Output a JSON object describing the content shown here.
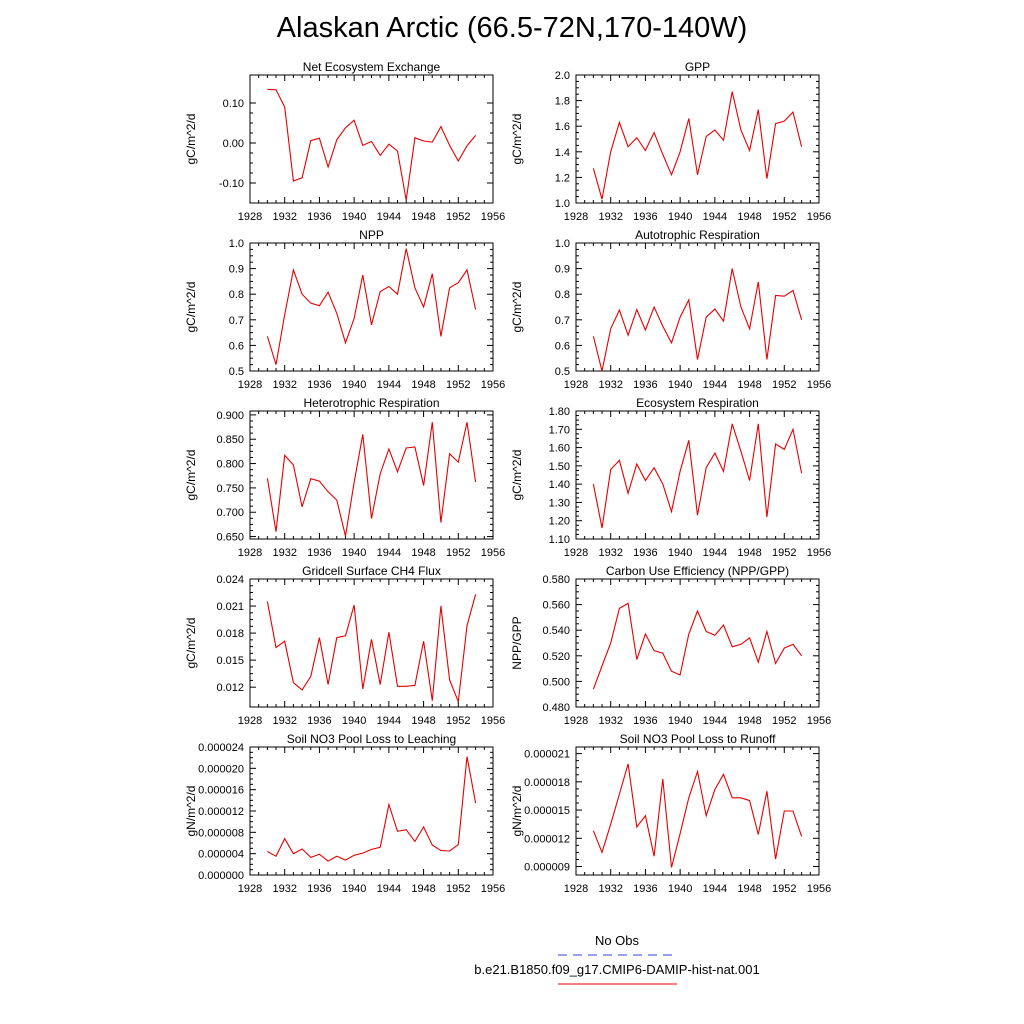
{
  "figure": {
    "title": "Alaskan Arctic (66.5-72N,170-140W)"
  },
  "legend": {
    "obs_label": "No Obs",
    "model_label": "b.e21.B1850.f09_g17.CMIP6-DAMIP-hist-nat.001",
    "obs_color": "#3c3cdc",
    "model_color": "#e60000"
  },
  "chart_data": [
    {
      "type": "line",
      "title": "Net Ecosystem Exchange",
      "ylabel": "gC/m^2/d",
      "xlim": [
        1928,
        1956
      ],
      "ylim": [
        -0.15,
        0.17
      ],
      "yticks": [
        0.1,
        0.0,
        -0.1
      ],
      "ytick_labels": [
        "0.10",
        "0.00",
        "-0.10"
      ],
      "x": [
        1930,
        1931,
        1932,
        1933,
        1934,
        1935,
        1936,
        1937,
        1938,
        1939,
        1940,
        1941,
        1942,
        1943,
        1944,
        1945,
        1946,
        1947,
        1948,
        1949,
        1950,
        1951,
        1952,
        1953,
        1954
      ],
      "series": [
        {
          "values": [
            0.134,
            0.133,
            0.09,
            -0.095,
            -0.087,
            0.006,
            0.012,
            -0.06,
            0.008,
            0.038,
            0.057,
            -0.006,
            0.004,
            -0.031,
            -0.003,
            -0.02,
            -0.143,
            0.013,
            0.005,
            0.002,
            0.041,
            -0.006,
            -0.045,
            -0.007,
            0.019
          ]
        }
      ]
    },
    {
      "type": "line",
      "title": "GPP",
      "ylabel": "gC/m^2/d",
      "xlim": [
        1928,
        1956
      ],
      "ylim": [
        1.0,
        2.0
      ],
      "yticks": [
        1.0,
        1.2,
        1.4,
        1.6,
        1.8,
        2.0
      ],
      "ytick_labels": [
        "1.0",
        "1.2",
        "1.4",
        "1.6",
        "1.8",
        "2.0"
      ],
      "x": [
        1930,
        1931,
        1932,
        1933,
        1934,
        1935,
        1936,
        1937,
        1938,
        1939,
        1940,
        1941,
        1942,
        1943,
        1944,
        1945,
        1946,
        1947,
        1948,
        1949,
        1950,
        1951,
        1952,
        1953,
        1954
      ],
      "series": [
        {
          "values": [
            1.27,
            1.03,
            1.4,
            1.63,
            1.44,
            1.51,
            1.41,
            1.55,
            1.38,
            1.22,
            1.4,
            1.66,
            1.22,
            1.52,
            1.57,
            1.49,
            1.87,
            1.57,
            1.41,
            1.73,
            1.19,
            1.62,
            1.64,
            1.71,
            1.44
          ]
        }
      ]
    },
    {
      "type": "line",
      "title": "NPP",
      "ylabel": "gC/m^2/d",
      "xlim": [
        1928,
        1956
      ],
      "ylim": [
        0.5,
        1.0
      ],
      "yticks": [
        0.5,
        0.6,
        0.7,
        0.8,
        0.9,
        1.0
      ],
      "ytick_labels": [
        "0.5",
        "0.6",
        "0.7",
        "0.8",
        "0.9",
        "1.0"
      ],
      "x": [
        1930,
        1931,
        1932,
        1933,
        1934,
        1935,
        1936,
        1937,
        1938,
        1939,
        1940,
        1941,
        1942,
        1943,
        1944,
        1945,
        1946,
        1947,
        1948,
        1949,
        1950,
        1951,
        1952,
        1953,
        1954
      ],
      "series": [
        {
          "values": [
            0.635,
            0.525,
            0.72,
            0.895,
            0.8,
            0.765,
            0.755,
            0.808,
            0.725,
            0.61,
            0.705,
            0.875,
            0.68,
            0.81,
            0.83,
            0.8,
            0.978,
            0.825,
            0.75,
            0.88,
            0.635,
            0.825,
            0.845,
            0.895,
            0.74
          ]
        }
      ]
    },
    {
      "type": "line",
      "title": "Autotrophic Respiration",
      "ylabel": "gC/m^2/d",
      "xlim": [
        1928,
        1956
      ],
      "ylim": [
        0.5,
        1.0
      ],
      "yticks": [
        0.5,
        0.6,
        0.7,
        0.8,
        0.9,
        1.0
      ],
      "ytick_labels": [
        "0.5",
        "0.6",
        "0.7",
        "0.8",
        "0.9",
        "1.0"
      ],
      "x": [
        1930,
        1931,
        1932,
        1933,
        1934,
        1935,
        1936,
        1937,
        1938,
        1939,
        1940,
        1941,
        1942,
        1943,
        1944,
        1945,
        1946,
        1947,
        1948,
        1949,
        1950,
        1951,
        1952,
        1953,
        1954
      ],
      "series": [
        {
          "values": [
            0.635,
            0.5,
            0.665,
            0.738,
            0.64,
            0.74,
            0.66,
            0.75,
            0.675,
            0.61,
            0.71,
            0.778,
            0.545,
            0.71,
            0.742,
            0.695,
            0.9,
            0.75,
            0.665,
            0.848,
            0.545,
            0.795,
            0.792,
            0.815,
            0.7
          ]
        }
      ]
    },
    {
      "type": "line",
      "title": "Heterotrophic Respiration",
      "ylabel": "gC/m^2/d",
      "xlim": [
        1928,
        1956
      ],
      "ylim": [
        0.645,
        0.908
      ],
      "yticks": [
        0.65,
        0.7,
        0.75,
        0.8,
        0.85,
        0.9
      ],
      "ytick_labels": [
        "0.650",
        "0.700",
        "0.750",
        "0.800",
        "0.850",
        "0.900"
      ],
      "x": [
        1930,
        1931,
        1932,
        1933,
        1934,
        1935,
        1936,
        1937,
        1938,
        1939,
        1940,
        1941,
        1942,
        1943,
        1944,
        1945,
        1946,
        1947,
        1948,
        1949,
        1950,
        1951,
        1952,
        1953,
        1954
      ],
      "series": [
        {
          "values": [
            0.77,
            0.66,
            0.817,
            0.797,
            0.711,
            0.769,
            0.764,
            0.742,
            0.725,
            0.651,
            0.761,
            0.86,
            0.687,
            0.779,
            0.83,
            0.783,
            0.832,
            0.834,
            0.755,
            0.885,
            0.679,
            0.82,
            0.803,
            0.885,
            0.762
          ]
        }
      ]
    },
    {
      "type": "line",
      "title": "Ecosystem Respiration",
      "ylabel": "gC/m^2/d",
      "xlim": [
        1928,
        1956
      ],
      "ylim": [
        1.1,
        1.8
      ],
      "yticks": [
        1.1,
        1.2,
        1.3,
        1.4,
        1.5,
        1.6,
        1.7,
        1.8
      ],
      "ytick_labels": [
        "1.10",
        "1.20",
        "1.30",
        "1.40",
        "1.50",
        "1.60",
        "1.70",
        "1.80"
      ],
      "x": [
        1930,
        1931,
        1932,
        1933,
        1934,
        1935,
        1936,
        1937,
        1938,
        1939,
        1940,
        1941,
        1942,
        1943,
        1944,
        1945,
        1946,
        1947,
        1948,
        1949,
        1950,
        1951,
        1952,
        1953,
        1954
      ],
      "series": [
        {
          "values": [
            1.4,
            1.16,
            1.48,
            1.53,
            1.35,
            1.51,
            1.42,
            1.49,
            1.4,
            1.25,
            1.47,
            1.64,
            1.23,
            1.49,
            1.57,
            1.47,
            1.73,
            1.58,
            1.42,
            1.73,
            1.22,
            1.62,
            1.59,
            1.7,
            1.46
          ]
        }
      ]
    },
    {
      "type": "line",
      "title": "Gridcell Surface CH4 Flux",
      "ylabel": "gC/m^2/d",
      "xlim": [
        1928,
        1956
      ],
      "ylim": [
        0.0098,
        0.024
      ],
      "yticks": [
        0.012,
        0.015,
        0.018,
        0.021,
        0.024
      ],
      "ytick_labels": [
        "0.012",
        "0.015",
        "0.018",
        "0.021",
        "0.024"
      ],
      "x": [
        1930,
        1931,
        1932,
        1933,
        1934,
        1935,
        1936,
        1937,
        1938,
        1939,
        1940,
        1941,
        1942,
        1943,
        1944,
        1945,
        1946,
        1947,
        1948,
        1949,
        1950,
        1951,
        1952,
        1953,
        1954
      ],
      "series": [
        {
          "values": [
            0.0215,
            0.0164,
            0.0171,
            0.0125,
            0.0117,
            0.0132,
            0.0175,
            0.0123,
            0.0175,
            0.0177,
            0.0211,
            0.0118,
            0.0173,
            0.0123,
            0.0181,
            0.0121,
            0.0121,
            0.0122,
            0.0171,
            0.0105,
            0.021,
            0.0128,
            0.0104,
            0.0188,
            0.0223
          ]
        }
      ]
    },
    {
      "type": "line",
      "title": "Carbon Use Efficiency (NPP/GPP)",
      "ylabel": "NPP/GPP",
      "xlim": [
        1928,
        1956
      ],
      "ylim": [
        0.48,
        0.58
      ],
      "yticks": [
        0.48,
        0.5,
        0.52,
        0.54,
        0.56,
        0.58
      ],
      "ytick_labels": [
        "0.480",
        "0.500",
        "0.520",
        "0.540",
        "0.560",
        "0.580"
      ],
      "x": [
        1930,
        1931,
        1932,
        1933,
        1934,
        1935,
        1936,
        1937,
        1938,
        1939,
        1940,
        1941,
        1942,
        1943,
        1944,
        1945,
        1946,
        1947,
        1948,
        1949,
        1950,
        1951,
        1952,
        1953,
        1954
      ],
      "series": [
        {
          "values": [
            0.494,
            0.512,
            0.53,
            0.557,
            0.561,
            0.517,
            0.537,
            0.524,
            0.522,
            0.508,
            0.505,
            0.537,
            0.555,
            0.539,
            0.536,
            0.544,
            0.527,
            0.529,
            0.534,
            0.515,
            0.539,
            0.514,
            0.526,
            0.529,
            0.52
          ]
        }
      ]
    },
    {
      "type": "line",
      "title": "Soil NO3 Pool Loss to Leaching",
      "ylabel": "gN/m^2/d",
      "xlim": [
        1928,
        1956
      ],
      "ylim": [
        0.0,
        2.4e-05
      ],
      "yticks": [
        0.0,
        4e-06,
        8e-06,
        1.2e-05,
        1.6e-05,
        2e-05,
        2.4e-05
      ],
      "ytick_labels": [
        "0.000000",
        "0.000004",
        "0.000008",
        "0.000012",
        "0.000016",
        "0.000020",
        "0.000024"
      ],
      "x": [
        1930,
        1931,
        1932,
        1933,
        1934,
        1935,
        1936,
        1937,
        1938,
        1939,
        1940,
        1941,
        1942,
        1943,
        1944,
        1945,
        1946,
        1947,
        1948,
        1949,
        1950,
        1951,
        1952,
        1953,
        1954
      ],
      "series": [
        {
          "values": [
            4.4e-06,
            3.5e-06,
            6.8e-06,
            4e-06,
            4.9e-06,
            3.3e-06,
            3.9e-06,
            2.6e-06,
            3.5e-06,
            2.8e-06,
            3.7e-06,
            4.1e-06,
            4.8e-06,
            5.2e-06,
            1.32e-05,
            8.2e-06,
            8.5e-06,
            6.3e-06,
            9e-06,
            5.6e-06,
            4.6e-06,
            4.5e-06,
            5.7e-06,
            2.22e-05,
            1.35e-05
          ]
        }
      ]
    },
    {
      "type": "line",
      "title": "Soil NO3 Pool Loss to Runoff",
      "ylabel": "gN/m^2/d",
      "xlim": [
        1928,
        1956
      ],
      "ylim": [
        8.1e-06,
        2.17e-05
      ],
      "yticks": [
        9e-06,
        1.2e-05,
        1.5e-05,
        1.8e-05,
        2.1e-05
      ],
      "ytick_labels": [
        "0.000009",
        "0.000012",
        "0.000015",
        "0.000018",
        "0.000021"
      ],
      "x": [
        1930,
        1931,
        1932,
        1933,
        1934,
        1935,
        1936,
        1937,
        1938,
        1939,
        1940,
        1941,
        1942,
        1943,
        1944,
        1945,
        1946,
        1947,
        1948,
        1949,
        1950,
        1951,
        1952,
        1953,
        1954
      ],
      "series": [
        {
          "values": [
            1.28e-05,
            1.05e-05,
            1.35e-05,
            1.67e-05,
            1.99e-05,
            1.32e-05,
            1.44e-05,
            1.01e-05,
            1.83e-05,
            8.9e-06,
            1.25e-05,
            1.63e-05,
            1.91e-05,
            1.44e-05,
            1.72e-05,
            1.88e-05,
            1.63e-05,
            1.63e-05,
            1.6e-05,
            1.24e-05,
            1.7e-05,
            9.8e-06,
            1.49e-05,
            1.49e-05,
            1.22e-05
          ]
        }
      ]
    }
  ]
}
